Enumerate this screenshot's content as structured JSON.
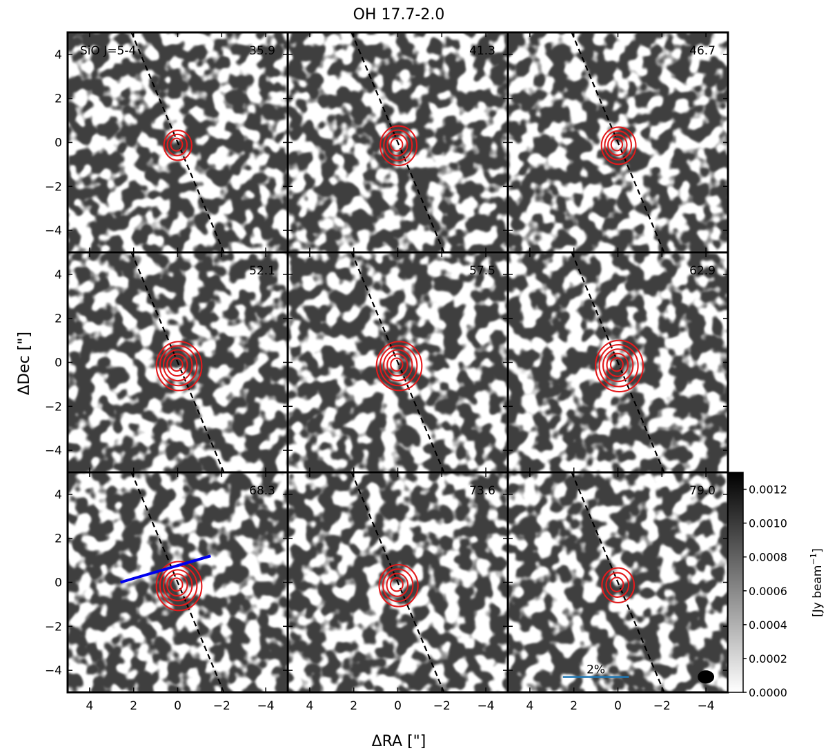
{
  "figure": {
    "title": "OH 17.7-2.0",
    "xlabel": "ΔRA [\"]",
    "ylabel": "ΔDec [\"]",
    "colorbar_label": "[Jy beam",
    "colorbar_label_sup": "−1",
    "colorbar_label_end": "]"
  },
  "chart_data": {
    "type": "heatmap",
    "description_of_panels": "channel maps (grayscale) with red contours, dashed line",
    "line_label": "SiO J=5-4",
    "panels": [
      {
        "velocity": "35.9",
        "contour_levels": 3,
        "contour_radius": 0.55
      },
      {
        "velocity": "41.3",
        "contour_levels": 4,
        "contour_radius": 0.75
      },
      {
        "velocity": "46.7",
        "contour_levels": 4,
        "contour_radius": 0.7
      },
      {
        "velocity": "52.1",
        "contour_levels": 5,
        "contour_radius": 0.95
      },
      {
        "velocity": "57.5",
        "contour_levels": 5,
        "contour_radius": 0.95
      },
      {
        "velocity": "62.9",
        "contour_levels": 5,
        "contour_radius": 1.0
      },
      {
        "velocity": "68.3",
        "contour_levels": 5,
        "contour_radius": 0.95,
        "has_vector": true
      },
      {
        "velocity": "73.6",
        "contour_levels": 4,
        "contour_radius": 0.8
      },
      {
        "velocity": "79.0",
        "contour_levels": 3,
        "contour_radius": 0.65,
        "has_scalebar": true,
        "has_beam": true
      }
    ],
    "x_ticks": [
      "4",
      "2",
      "0",
      "−2",
      "−4"
    ],
    "x_tick_values": [
      4,
      2,
      0,
      -2,
      -4
    ],
    "y_ticks": [
      "4",
      "2",
      "0",
      "−2",
      "−4"
    ],
    "y_tick_values": [
      4,
      2,
      0,
      -2,
      -4
    ],
    "xlim": [
      5,
      -5
    ],
    "ylim": [
      -5,
      5
    ],
    "dashed_line": {
      "x1": 2.1,
      "y1": 5,
      "x2": -2.1,
      "y2": -5
    },
    "vector_line": {
      "x1": 2.6,
      "y1": 0.0,
      "x2": -1.5,
      "y2": 1.2
    },
    "scalebar_label": "2%",
    "scalebar": {
      "x1": 2.5,
      "x2": -0.5,
      "y": -4.3
    },
    "beam": {
      "x": -4.0,
      "y": -4.3,
      "width": 0.75,
      "height": 0.6
    },
    "colorbar": {
      "ticks": [
        "0.0012",
        "0.0010",
        "0.0008",
        "0.0006",
        "0.0004",
        "0.0002",
        "0.0000"
      ],
      "tick_values": [
        0.0012,
        0.001,
        0.0008,
        0.0006,
        0.0004,
        0.0002,
        0.0
      ],
      "vmin": 0.0,
      "vmax": 0.0013
    },
    "colors": {
      "contour": "#e31a1c",
      "vector": "#0000ee",
      "scalebar": "#1f77b4",
      "dashed": "#000000"
    }
  }
}
